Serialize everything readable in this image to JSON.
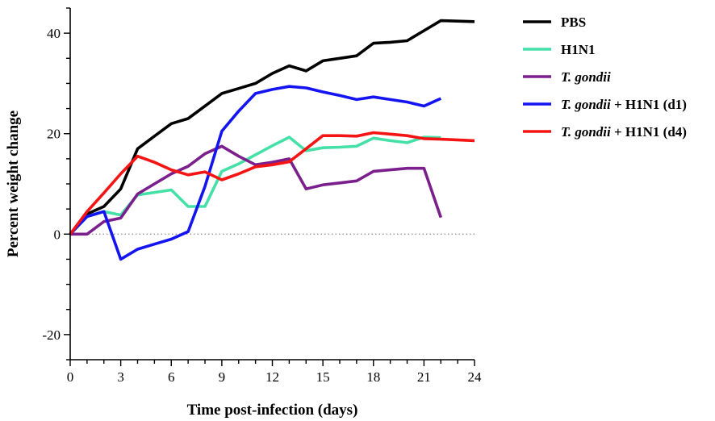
{
  "chart_data": {
    "type": "line",
    "title": "",
    "xlabel": "Time post-infection (days)",
    "ylabel": "Percent weight change",
    "xlim": [
      0,
      24
    ],
    "ylim": [
      -25,
      45
    ],
    "x_ticks": [
      "0",
      "3",
      "6",
      "9",
      "12",
      "15",
      "18",
      "21",
      "24"
    ],
    "y_ticks": [
      "-20",
      "0",
      "20",
      "40"
    ],
    "reference_line": {
      "y": 0,
      "style": "dotted"
    },
    "legend_position": "right",
    "series": [
      {
        "name": "PBS",
        "legend_parts": [
          {
            "text": "PBS",
            "italic": false
          }
        ],
        "color": "#000000",
        "points": [
          [
            0,
            0
          ],
          [
            1,
            4
          ],
          [
            2,
            5.5
          ],
          [
            3,
            9
          ],
          [
            4,
            17
          ],
          [
            5,
            19.5
          ],
          [
            6,
            22
          ],
          [
            7,
            23
          ],
          [
            8,
            25.5
          ],
          [
            9,
            28
          ],
          [
            10,
            29
          ],
          [
            11,
            30
          ],
          [
            12,
            32
          ],
          [
            13,
            33.5
          ],
          [
            14,
            32.5
          ],
          [
            15,
            34.5
          ],
          [
            16,
            35
          ],
          [
            17,
            35.5
          ],
          [
            18,
            38
          ],
          [
            19,
            38.2
          ],
          [
            20,
            38.5
          ],
          [
            21,
            40.5
          ],
          [
            22,
            42.5
          ],
          [
            24,
            42.3
          ]
        ]
      },
      {
        "name": "H1N1",
        "legend_parts": [
          {
            "text": "H1N1",
            "italic": false
          }
        ],
        "color": "#44E0A8",
        "points": [
          [
            0,
            0
          ],
          [
            1,
            3.5
          ],
          [
            2,
            4.5
          ],
          [
            3,
            3.8
          ],
          [
            4,
            7.8
          ],
          [
            5,
            8.3
          ],
          [
            6,
            8.8
          ],
          [
            7,
            5.5
          ],
          [
            8,
            5.5
          ],
          [
            9,
            12.5
          ],
          [
            10,
            14
          ],
          [
            11,
            15.8
          ],
          [
            12,
            17.6
          ],
          [
            13,
            19.3
          ],
          [
            14,
            16.6
          ],
          [
            15,
            17.2
          ],
          [
            16,
            17.3
          ],
          [
            17,
            17.5
          ],
          [
            18,
            19.1
          ],
          [
            19,
            18.6
          ],
          [
            20,
            18.2
          ],
          [
            21,
            19.3
          ],
          [
            22,
            19.2
          ]
        ]
      },
      {
        "name": "T. gondii",
        "legend_parts": [
          {
            "text": "T. gondii",
            "italic": true
          }
        ],
        "color": "#7B1F8C",
        "points": [
          [
            0,
            0
          ],
          [
            1,
            0
          ],
          [
            2,
            2.5
          ],
          [
            3,
            3.2
          ],
          [
            4,
            8
          ],
          [
            5,
            10
          ],
          [
            6,
            12
          ],
          [
            7,
            13.5
          ],
          [
            8,
            16
          ],
          [
            9,
            17.5
          ],
          [
            10,
            15.5
          ],
          [
            11,
            13.8
          ],
          [
            12,
            14.3
          ],
          [
            13,
            15
          ],
          [
            14,
            9
          ],
          [
            15,
            9.8
          ],
          [
            16,
            10.2
          ],
          [
            17,
            10.6
          ],
          [
            18,
            12.5
          ],
          [
            19,
            12.8
          ],
          [
            20,
            13.1
          ],
          [
            21,
            13.1
          ],
          [
            22,
            3.3
          ]
        ]
      },
      {
        "name": "T. gondii + H1N1 (d1)",
        "legend_parts": [
          {
            "text": "T. gondii",
            "italic": true
          },
          {
            "text": " + H1N1 (d1)",
            "italic": false
          }
        ],
        "color": "#1414F0",
        "points": [
          [
            0,
            0
          ],
          [
            1,
            3.5
          ],
          [
            2,
            4.5
          ],
          [
            3,
            -5
          ],
          [
            4,
            -3
          ],
          [
            5,
            -2
          ],
          [
            6,
            -1
          ],
          [
            7,
            0.5
          ],
          [
            8,
            9.5
          ],
          [
            9,
            20.5
          ],
          [
            10,
            24.5
          ],
          [
            11,
            28
          ],
          [
            12,
            28.8
          ],
          [
            13,
            29.4
          ],
          [
            14,
            29.1
          ],
          [
            15,
            28.3
          ],
          [
            16,
            27.6
          ],
          [
            17,
            26.8
          ],
          [
            18,
            27.3
          ],
          [
            19,
            26.8
          ],
          [
            20,
            26.3
          ],
          [
            21,
            25.5
          ],
          [
            22,
            27
          ]
        ]
      },
      {
        "name": "T. gondii + H1N1 (d4)",
        "legend_parts": [
          {
            "text": "T. gondii",
            "italic": true
          },
          {
            "text": " + H1N1 (d4)",
            "italic": false
          }
        ],
        "color": "#F51414",
        "points": [
          [
            0,
            0
          ],
          [
            1,
            4.5
          ],
          [
            2,
            8.2
          ],
          [
            3,
            12
          ],
          [
            4,
            15.5
          ],
          [
            5,
            14.3
          ],
          [
            6,
            12.8
          ],
          [
            7,
            11.8
          ],
          [
            8,
            12.4
          ],
          [
            9,
            10.8
          ],
          [
            10,
            12
          ],
          [
            11,
            13.4
          ],
          [
            12,
            13.8
          ],
          [
            13,
            14.4
          ],
          [
            14,
            17
          ],
          [
            15,
            19.6
          ],
          [
            16,
            19.6
          ],
          [
            17,
            19.5
          ],
          [
            18,
            20.2
          ],
          [
            19,
            19.9
          ],
          [
            20,
            19.6
          ],
          [
            21,
            19
          ],
          [
            22,
            18.9
          ],
          [
            24,
            18.6
          ]
        ]
      }
    ]
  }
}
